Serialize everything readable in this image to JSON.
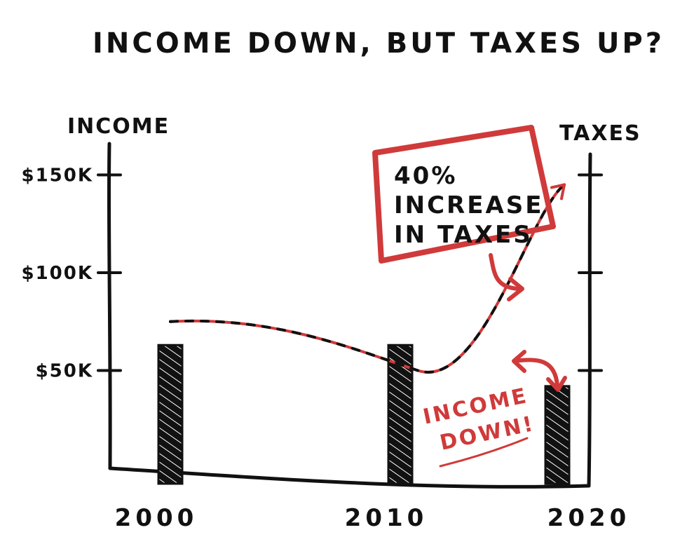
{
  "chart_data": {
    "type": "bar",
    "title": "INCOME DOWN, BUT TAXES UP?",
    "ylabel": "INCOME",
    "y2label": "TAXES",
    "categories": [
      "2000",
      "2010",
      "2020"
    ],
    "ylim": [
      0,
      200000
    ],
    "yticks": [
      {
        "value": 50000,
        "label": "$50K"
      },
      {
        "value": 100000,
        "label": "$100K"
      },
      {
        "value": 150000,
        "label": "$150K"
      }
    ],
    "y2ticks": [
      50000,
      100000,
      150000
    ],
    "series": [
      {
        "kind": "bar",
        "values": [
          63000,
          63000,
          42000
        ],
        "color": "#111111"
      },
      {
        "kind": "dashed-line",
        "values": [
          75000,
          50000,
          145000
        ],
        "colors": [
          "#111111",
          "#d03a3a"
        ]
      }
    ],
    "annotations": [
      {
        "lines": [
          "40%",
          "INCREASE",
          "IN TAXES"
        ],
        "color": "#d03a3a"
      },
      {
        "lines": [
          "INCOME",
          "DOWN!"
        ],
        "color": "#d03a3a"
      }
    ]
  }
}
